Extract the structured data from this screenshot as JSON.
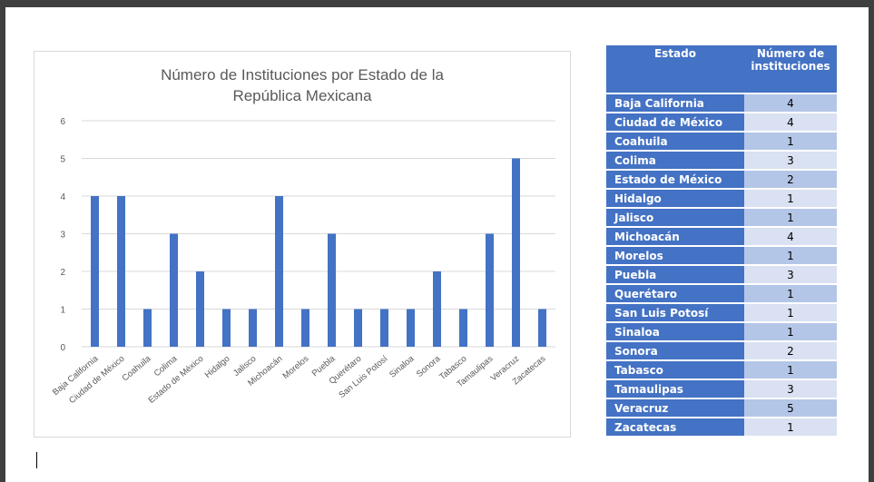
{
  "chart_data": {
    "type": "bar",
    "title_lines": [
      "Número de Instituciones por Estado de la",
      "República Mexicana"
    ],
    "categories": [
      "Baja California",
      "Ciudad de México",
      "Coahuila",
      "Colima",
      "Estado de México",
      "Hidalgo",
      "Jalisco",
      "Michoacán",
      "Morelos",
      "Puebla",
      "Querétaro",
      "San Luis Potosí",
      "Sinaloa",
      "Sonora",
      "Tabasco",
      "Tamaulipas",
      "Veracruz",
      "Zacatecas"
    ],
    "values": [
      4,
      4,
      1,
      3,
      2,
      1,
      1,
      4,
      1,
      3,
      1,
      1,
      1,
      2,
      1,
      3,
      5,
      1
    ],
    "ylim": [
      0,
      6
    ],
    "yticks": [
      0,
      1,
      2,
      3,
      4,
      5,
      6
    ],
    "grid": true,
    "bar_color": "#4472c4",
    "grid_color": "#d9d9d9",
    "text_color": "#595959"
  },
  "table": {
    "headers": [
      "Estado",
      "Número de instituciones"
    ],
    "rows": [
      {
        "estado": "Baja California",
        "numero": "4"
      },
      {
        "estado": "Ciudad de México",
        "numero": "4"
      },
      {
        "estado": "Coahuila",
        "numero": "1"
      },
      {
        "estado": "Colima",
        "numero": "3"
      },
      {
        "estado": "Estado de México",
        "numero": "2"
      },
      {
        "estado": "Hidalgo",
        "numero": "1"
      },
      {
        "estado": "Jalisco",
        "numero": "1"
      },
      {
        "estado": "Michoacán",
        "numero": "4"
      },
      {
        "estado": "Morelos",
        "numero": "1"
      },
      {
        "estado": "Puebla",
        "numero": "3"
      },
      {
        "estado": "Querétaro",
        "numero": "1"
      },
      {
        "estado": "San Luis Potosí",
        "numero": "1"
      },
      {
        "estado": "Sinaloa",
        "numero": "1"
      },
      {
        "estado": "Sonora",
        "numero": "2"
      },
      {
        "estado": "Tabasco",
        "numero": "1"
      },
      {
        "estado": "Tamaulipas",
        "numero": "3"
      },
      {
        "estado": "Veracruz",
        "numero": "5"
      },
      {
        "estado": "Zacatecas",
        "numero": "1"
      }
    ],
    "header_color": "#4472c4",
    "row_color_odd": "#b4c6e7",
    "row_color_even": "#d9e1f2"
  }
}
